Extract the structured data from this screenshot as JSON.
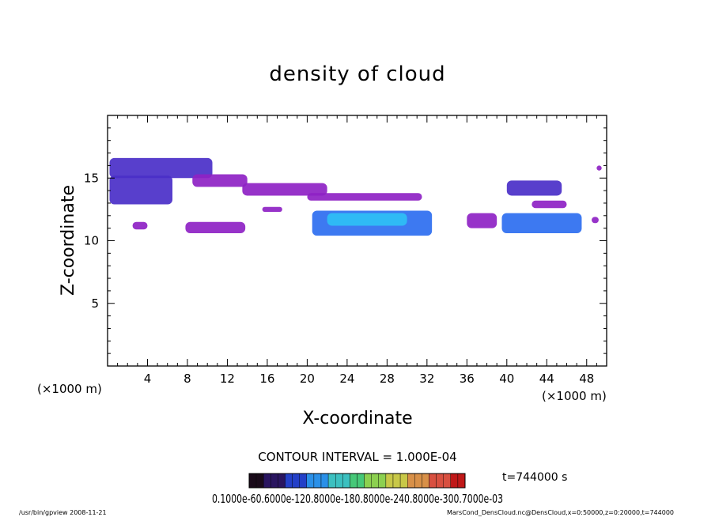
{
  "chart_data": {
    "type": "heatmap",
    "title": "density of cloud",
    "xlabel": "X-coordinate",
    "ylabel": "Z-coordinate",
    "x_unit": "(×1000 m)",
    "xlim": [
      0,
      50
    ],
    "ylim": [
      0,
      20
    ],
    "x_ticks": [
      4,
      8,
      12,
      16,
      20,
      24,
      28,
      32,
      36,
      40,
      44,
      48
    ],
    "y_ticks": [
      5,
      10,
      15
    ],
    "contour_interval": "CONTOUR INTERVAL = 1.000E-04",
    "time_label": "t=744000 s",
    "colorbar_labels": "0.1000e-60.6000e-120.8000e-180.8000e-240.8000e-300.7000e-03",
    "footer_left": "/usr/bin/gpview  2008-11-21",
    "footer_right": "MarsCond_DensCloud.nc@DensCloud,x=0:50000,z=0:20000,t=744000",
    "grid": false,
    "cloud_regions": [
      {
        "x0": 0.2,
        "x1": 10.5,
        "z0": 15.0,
        "z1": 16.6,
        "level": 0.35
      },
      {
        "x0": 8.5,
        "x1": 14.0,
        "z0": 14.3,
        "z1": 15.3,
        "level": 0.25
      },
      {
        "x0": 13.5,
        "x1": 22.0,
        "z0": 13.6,
        "z1": 14.6,
        "level": 0.25
      },
      {
        "x0": 20.0,
        "x1": 31.5,
        "z0": 13.2,
        "z1": 13.8,
        "level": 0.2
      },
      {
        "x0": 0.2,
        "x1": 6.5,
        "z0": 12.9,
        "z1": 15.2,
        "level": 0.35
      },
      {
        "x0": 2.5,
        "x1": 4.0,
        "z0": 10.9,
        "z1": 11.5,
        "level": 0.15
      },
      {
        "x0": 7.8,
        "x1": 13.8,
        "z0": 10.6,
        "z1": 11.5,
        "level": 0.3
      },
      {
        "x0": 15.5,
        "x1": 17.5,
        "z0": 12.3,
        "z1": 12.7,
        "level": 0.15
      },
      {
        "x0": 20.5,
        "x1": 32.5,
        "z0": 10.4,
        "z1": 12.4,
        "level": 0.55
      },
      {
        "x0": 22.0,
        "x1": 30.0,
        "z0": 11.2,
        "z1": 12.2,
        "level": 0.85
      },
      {
        "x0": 36.0,
        "x1": 39.0,
        "z0": 11.0,
        "z1": 12.2,
        "level": 0.15
      },
      {
        "x0": 39.5,
        "x1": 47.5,
        "z0": 10.6,
        "z1": 12.2,
        "level": 0.6
      },
      {
        "x0": 40.0,
        "x1": 45.5,
        "z0": 13.6,
        "z1": 14.8,
        "level": 0.35
      },
      {
        "x0": 42.5,
        "x1": 46.0,
        "z0": 12.6,
        "z1": 13.2,
        "level": 0.2
      },
      {
        "x0": 48.5,
        "x1": 49.2,
        "z0": 11.4,
        "z1": 11.9,
        "level": 0.1
      },
      {
        "x0": 49.0,
        "x1": 49.5,
        "z0": 15.6,
        "z1": 16.0,
        "level": 0.1
      }
    ]
  },
  "colors": {
    "low": "#8e22c4",
    "mid": "#4a2fc8",
    "high": "#2c6ef0",
    "peak": "#2ec0f5"
  }
}
